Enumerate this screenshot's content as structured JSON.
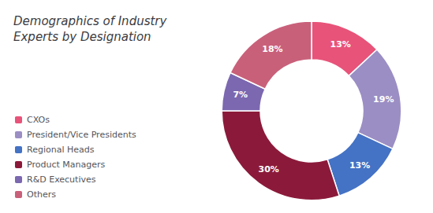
{
  "chart_data": {
    "type": "pie",
    "title": "Demographics of Industry\nExperts by Designation",
    "categories": [
      "CXOs",
      "President/Vice Presidents",
      "Regional Heads",
      "Product Managers",
      "R&D Executives",
      "Others"
    ],
    "values": [
      13,
      19,
      13,
      30,
      7,
      18
    ],
    "value_labels": [
      "13%",
      "19%",
      "13%",
      "30%",
      "7%",
      "18%"
    ],
    "colors": [
      "#E8537A",
      "#9B8EC4",
      "#4472C4",
      "#8B1A3A",
      "#7B68B0",
      "#C9607A"
    ],
    "data_labels": true,
    "legend": "lower left"
  }
}
